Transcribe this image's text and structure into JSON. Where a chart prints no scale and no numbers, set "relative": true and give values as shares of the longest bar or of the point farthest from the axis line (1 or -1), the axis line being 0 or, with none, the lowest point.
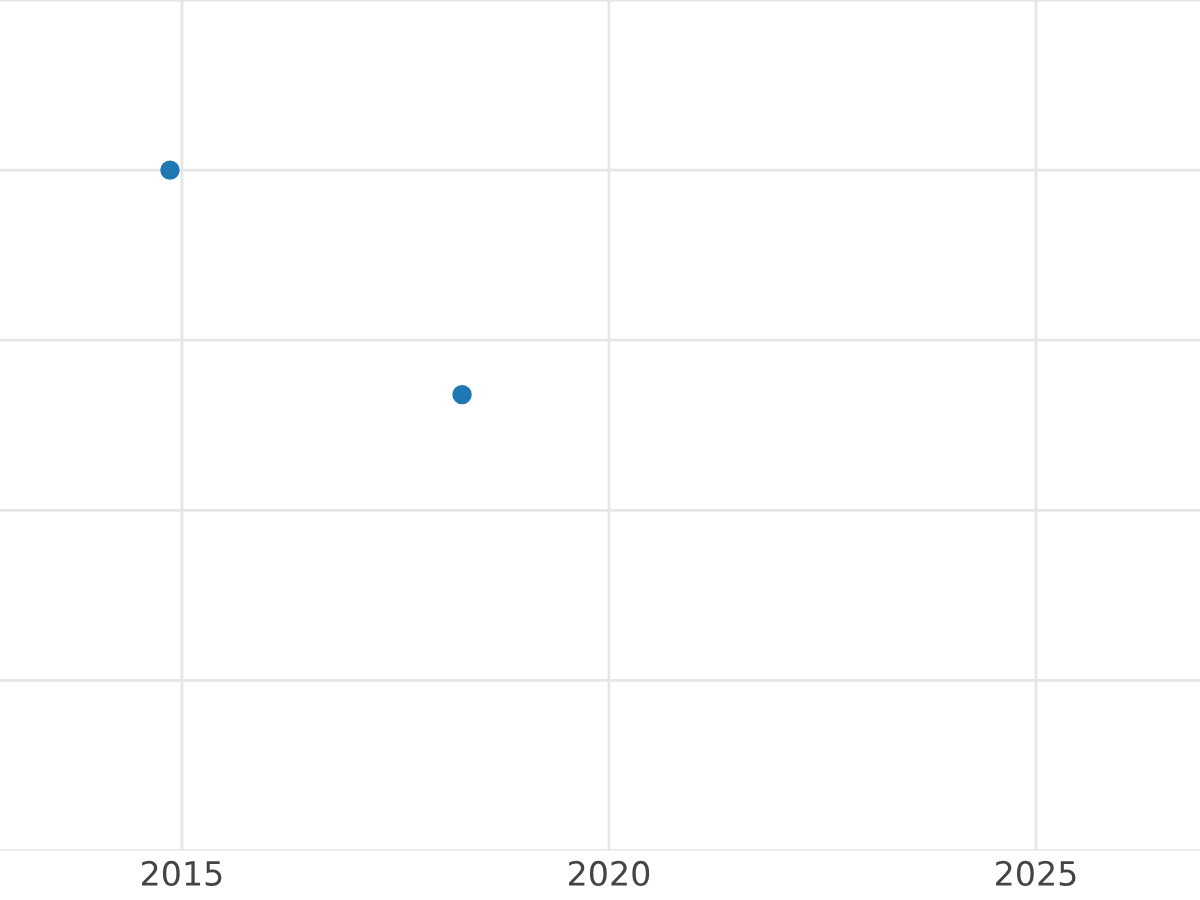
{
  "chart_data": {
    "type": "scatter",
    "relative": true,
    "x": [
      2014.86,
      2018.28
    ],
    "series": [
      {
        "color": "#1f77b4",
        "values": [
          1,
          0.67
        ]
      }
    ],
    "xlim": [
      2012.87,
      2026.92
    ],
    "xticks": [
      2015,
      2020,
      2025
    ],
    "grid": true,
    "tick_labels": "x",
    "marker": "circle"
  }
}
